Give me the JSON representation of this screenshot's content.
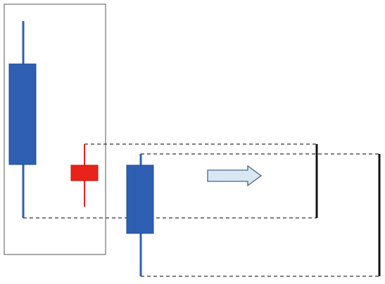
{
  "colors": {
    "bearish_fill": "#2f5fb3",
    "bearish_stroke": "#1f4a93",
    "wick_blue": "#2f5fb3",
    "bullish_fill": "#e8231c",
    "bullish_stroke": "#c51710",
    "dashed": "#333333",
    "box_stroke": "#555555",
    "arrow_fill": "#d9e7f5",
    "arrow_stroke": "#4a6380",
    "bar_black": "#111111"
  },
  "icons": {
    "arrow": "right-arrow-icon"
  }
}
